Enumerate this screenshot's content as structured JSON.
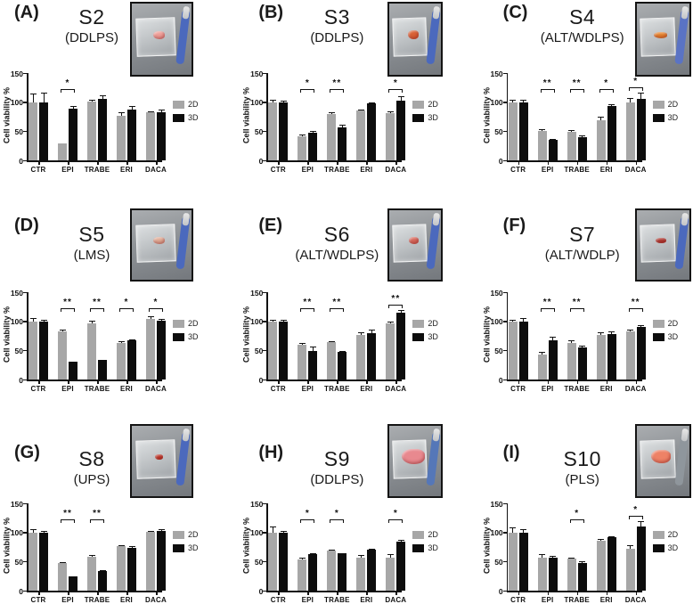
{
  "figure": {
    "description": "Cell viability of sarcoma patient samples S2-S10 treated in 2D and 3D cultures",
    "colors": {
      "series_2d": "#a7a7a7",
      "series_3d": "#0d0d0d",
      "axis": "#111111",
      "background": "#ffffff"
    }
  },
  "panels": [
    {
      "letter": "(A)",
      "title": "S2",
      "subtype": "(DDLPS)",
      "photo": {
        "tool_color": "#4b69bd",
        "tissue_color": "#efa09a",
        "tissue_w": 13,
        "tissue_h": 9
      }
    },
    {
      "letter": "(B)",
      "title": "S3",
      "subtype": "(DDLPS)",
      "photo": {
        "tool_color": "#4b69bd",
        "tissue_color": "#d96236",
        "tissue_w": 12,
        "tissue_h": 10
      }
    },
    {
      "letter": "(C)",
      "title": "S4",
      "subtype": "(ALT/WDLPS)",
      "photo": {
        "tool_color": "#5a73c4",
        "tissue_color": "#e8872f",
        "tissue_w": 15,
        "tissue_h": 7
      }
    },
    {
      "letter": "(D)",
      "title": "S5",
      "subtype": "(LMS)",
      "photo": {
        "tool_color": "#4b69bd",
        "tissue_color": "#e2b09a",
        "tissue_w": 13,
        "tissue_h": 8
      }
    },
    {
      "letter": "(E)",
      "title": "S6",
      "subtype": "(ALT/WDLPS)",
      "photo": {
        "tool_color": "#4b69bd",
        "tissue_color": "#d96b5e",
        "tissue_w": 11,
        "tissue_h": 8
      }
    },
    {
      "letter": "(F)",
      "title": "S7",
      "subtype": "(ALT/WDLP)",
      "photo": {
        "tool_color": "#4b69bd",
        "tissue_color": "#b03a32",
        "tissue_w": 12,
        "tissue_h": 6
      }
    },
    {
      "letter": "(G)",
      "title": "S8",
      "subtype": "(UPS)",
      "photo": {
        "tool_color": "#4b69bd",
        "tissue_color": "#c0392b",
        "tissue_w": 9,
        "tissue_h": 6
      }
    },
    {
      "letter": "(H)",
      "title": "S9",
      "subtype": "(DDLPS)",
      "photo": {
        "tool_color": "#5577b8",
        "tissue_color": "#e8898f",
        "tissue_w": 26,
        "tissue_h": 17
      }
    },
    {
      "letter": "(I)",
      "title": "S10",
      "subtype": "(PLS)",
      "photo": {
        "tool_color": "#8f969c",
        "tissue_color": "#ee8266",
        "tissue_w": 22,
        "tissue_h": 15
      }
    }
  ],
  "chart_data": [
    {
      "type": "bar",
      "panel": "A",
      "title": "S2 (DDLPS)",
      "ylabel": "Cell viability %",
      "ylim": [
        0,
        150
      ],
      "yticks": [
        0,
        50,
        100,
        150
      ],
      "categories": [
        "CTR",
        "EPI",
        "TRABE",
        "ERI",
        "DACA"
      ],
      "legend_position": "right",
      "series": [
        {
          "name": "2D",
          "color": "#a7a7a7",
          "values": [
            100,
            29,
            101,
            77,
            82
          ],
          "errors": [
            15,
            0,
            3,
            6,
            2
          ]
        },
        {
          "name": "3D",
          "color": "#0d0d0d",
          "values": [
            100,
            89,
            105,
            87,
            83
          ],
          "errors": [
            17,
            5,
            7,
            6,
            5
          ]
        }
      ],
      "significance": [
        {
          "category": "EPI",
          "label": "*"
        }
      ]
    },
    {
      "type": "bar",
      "panel": "B",
      "title": "S3 (DDLPS)",
      "ylabel": "Cell viability %",
      "ylim": [
        0,
        150
      ],
      "yticks": [
        0,
        50,
        100,
        150
      ],
      "categories": [
        "CTR",
        "EPI",
        "TRABE",
        "ERI",
        "DACA"
      ],
      "legend_position": "right",
      "series": [
        {
          "name": "2D",
          "color": "#a7a7a7",
          "values": [
            100,
            42,
            80,
            85,
            81
          ],
          "errors": [
            4,
            2,
            3,
            3,
            3
          ]
        },
        {
          "name": "3D",
          "color": "#0d0d0d",
          "values": [
            100,
            48,
            56,
            98,
            102
          ],
          "errors": [
            2,
            2,
            5,
            2,
            8
          ]
        }
      ],
      "significance": [
        {
          "category": "EPI",
          "label": "*"
        },
        {
          "category": "TRABE",
          "label": "**"
        },
        {
          "category": "DACA",
          "label": "*"
        }
      ]
    },
    {
      "type": "bar",
      "panel": "C",
      "title": "S4 (ALT/WDLPS)",
      "ylabel": "Cell viability %",
      "ylim": [
        0,
        150
      ],
      "yticks": [
        0,
        50,
        100,
        150
      ],
      "categories": [
        "CTR",
        "EPI",
        "TRABE",
        "ERI",
        "DACA"
      ],
      "legend_position": "right",
      "series": [
        {
          "name": "2D",
          "color": "#a7a7a7",
          "values": [
            100,
            50,
            49,
            69,
            100
          ],
          "errors": [
            4,
            4,
            3,
            6,
            7
          ]
        },
        {
          "name": "3D",
          "color": "#0d0d0d",
          "values": [
            100,
            35,
            40,
            93,
            106
          ],
          "errors": [
            4,
            2,
            3,
            3,
            10
          ]
        }
      ],
      "significance": [
        {
          "category": "EPI",
          "label": "**"
        },
        {
          "category": "TRABE",
          "label": "**"
        },
        {
          "category": "ERI",
          "label": "*"
        },
        {
          "category": "DACA",
          "label": "*"
        }
      ]
    },
    {
      "type": "bar",
      "panel": "D",
      "title": "S5 (LMS)",
      "ylabel": "Cell viability %",
      "ylim": [
        0,
        150
      ],
      "yticks": [
        0,
        50,
        100,
        150
      ],
      "categories": [
        "CTR",
        "EPI",
        "TRABE",
        "ERI",
        "DACA"
      ],
      "legend_position": "right",
      "series": [
        {
          "name": "2D",
          "color": "#a7a7a7",
          "values": [
            100,
            82,
            97,
            62,
            104
          ],
          "errors": [
            5,
            4,
            4,
            4,
            5
          ]
        },
        {
          "name": "3D",
          "color": "#0d0d0d",
          "values": [
            100,
            30,
            33,
            67,
            101
          ],
          "errors": [
            2,
            0,
            0,
            2,
            3
          ]
        }
      ],
      "significance": [
        {
          "category": "EPI",
          "label": "**"
        },
        {
          "category": "TRABE",
          "label": "**"
        },
        {
          "category": "ERI",
          "label": "*"
        },
        {
          "category": "DACA",
          "label": "*"
        }
      ]
    },
    {
      "type": "bar",
      "panel": "E",
      "title": "S6 (ALT/WDLPS)",
      "ylabel": "Cell viability %",
      "ylim": [
        0,
        150
      ],
      "yticks": [
        0,
        50,
        100,
        150
      ],
      "categories": [
        "CTR",
        "EPI",
        "TRABE",
        "ERI",
        "DACA"
      ],
      "legend_position": "right",
      "series": [
        {
          "name": "2D",
          "color": "#a7a7a7",
          "values": [
            100,
            60,
            64,
            77,
            96
          ],
          "errors": [
            2,
            2,
            2,
            4,
            3
          ]
        },
        {
          "name": "3D",
          "color": "#0d0d0d",
          "values": [
            100,
            49,
            47,
            80,
            115
          ],
          "errors": [
            3,
            8,
            2,
            5,
            5
          ]
        }
      ],
      "significance": [
        {
          "category": "EPI",
          "label": "**"
        },
        {
          "category": "TRABE",
          "label": "**"
        },
        {
          "category": "DACA",
          "label": "**"
        }
      ]
    },
    {
      "type": "bar",
      "panel": "F",
      "title": "S7 (ALT/WDLP)",
      "ylabel": "Cell viability %",
      "ylim": [
        0,
        150
      ],
      "yticks": [
        0,
        50,
        100,
        150
      ],
      "categories": [
        "CTR",
        "EPI",
        "TRABE",
        "ERI",
        "DACA"
      ],
      "legend_position": "right",
      "series": [
        {
          "name": "2D",
          "color": "#a7a7a7",
          "values": [
            100,
            43,
            62,
            77,
            82
          ],
          "errors": [
            3,
            4,
            5,
            4,
            3
          ]
        },
        {
          "name": "3D",
          "color": "#0d0d0d",
          "values": [
            100,
            68,
            55,
            78,
            90
          ],
          "errors": [
            5,
            5,
            3,
            4,
            4
          ]
        }
      ],
      "significance": [
        {
          "category": "EPI",
          "label": "**"
        },
        {
          "category": "TRABE",
          "label": "**"
        },
        {
          "category": "DACA",
          "label": "**"
        }
      ]
    },
    {
      "type": "bar",
      "panel": "G",
      "title": "S8 (UPS)",
      "ylabel": "Cell viability %",
      "ylim": [
        0,
        150
      ],
      "yticks": [
        0,
        50,
        100,
        150
      ],
      "categories": [
        "CTR",
        "EPI",
        "TRABE",
        "ERI",
        "DACA"
      ],
      "legend_position": "right",
      "series": [
        {
          "name": "2D",
          "color": "#a7a7a7",
          "values": [
            100,
            47,
            58,
            76,
            101
          ],
          "errors": [
            5,
            2,
            3,
            2,
            2
          ]
        },
        {
          "name": "3D",
          "color": "#0d0d0d",
          "values": [
            100,
            25,
            33,
            74,
            103
          ],
          "errors": [
            2,
            0,
            2,
            2,
            2
          ]
        }
      ],
      "significance": [
        {
          "category": "EPI",
          "label": "**"
        },
        {
          "category": "TRABE",
          "label": "**"
        }
      ]
    },
    {
      "type": "bar",
      "panel": "H",
      "title": "S9 (DDLPS)",
      "ylabel": "Cell viability %",
      "ylim": [
        0,
        150
      ],
      "yticks": [
        0,
        50,
        100,
        150
      ],
      "categories": [
        "CTR",
        "EPI",
        "TRABE",
        "ERI",
        "DACA"
      ],
      "legend_position": "right",
      "series": [
        {
          "name": "2D",
          "color": "#a7a7a7",
          "values": [
            100,
            53,
            69,
            57,
            57
          ],
          "errors": [
            10,
            3,
            1,
            4,
            6
          ]
        },
        {
          "name": "3D",
          "color": "#0d0d0d",
          "values": [
            99,
            63,
            64,
            70,
            84
          ],
          "errors": [
            3,
            2,
            1,
            2,
            4
          ]
        }
      ],
      "significance": [
        {
          "category": "EPI",
          "label": "*"
        },
        {
          "category": "TRABE",
          "label": "*"
        },
        {
          "category": "DACA",
          "label": "*"
        }
      ]
    },
    {
      "type": "bar",
      "panel": "I",
      "title": "S10 (PLS)",
      "ylabel": "Cell viability %",
      "ylim": [
        0,
        150
      ],
      "yticks": [
        0,
        50,
        100,
        150
      ],
      "categories": [
        "CTR",
        "EPI",
        "TRABE",
        "ERI",
        "DACA"
      ],
      "legend_position": "right",
      "series": [
        {
          "name": "2D",
          "color": "#a7a7a7",
          "values": [
            100,
            57,
            55,
            85,
            72
          ],
          "errors": [
            8,
            6,
            2,
            4,
            6
          ]
        },
        {
          "name": "3D",
          "color": "#0d0d0d",
          "values": [
            100,
            57,
            48,
            92,
            110
          ],
          "errors": [
            5,
            2,
            2,
            2,
            10
          ]
        }
      ],
      "significance": [
        {
          "category": "TRABE",
          "label": "*"
        },
        {
          "category": "DACA",
          "label": "*"
        }
      ]
    }
  ]
}
